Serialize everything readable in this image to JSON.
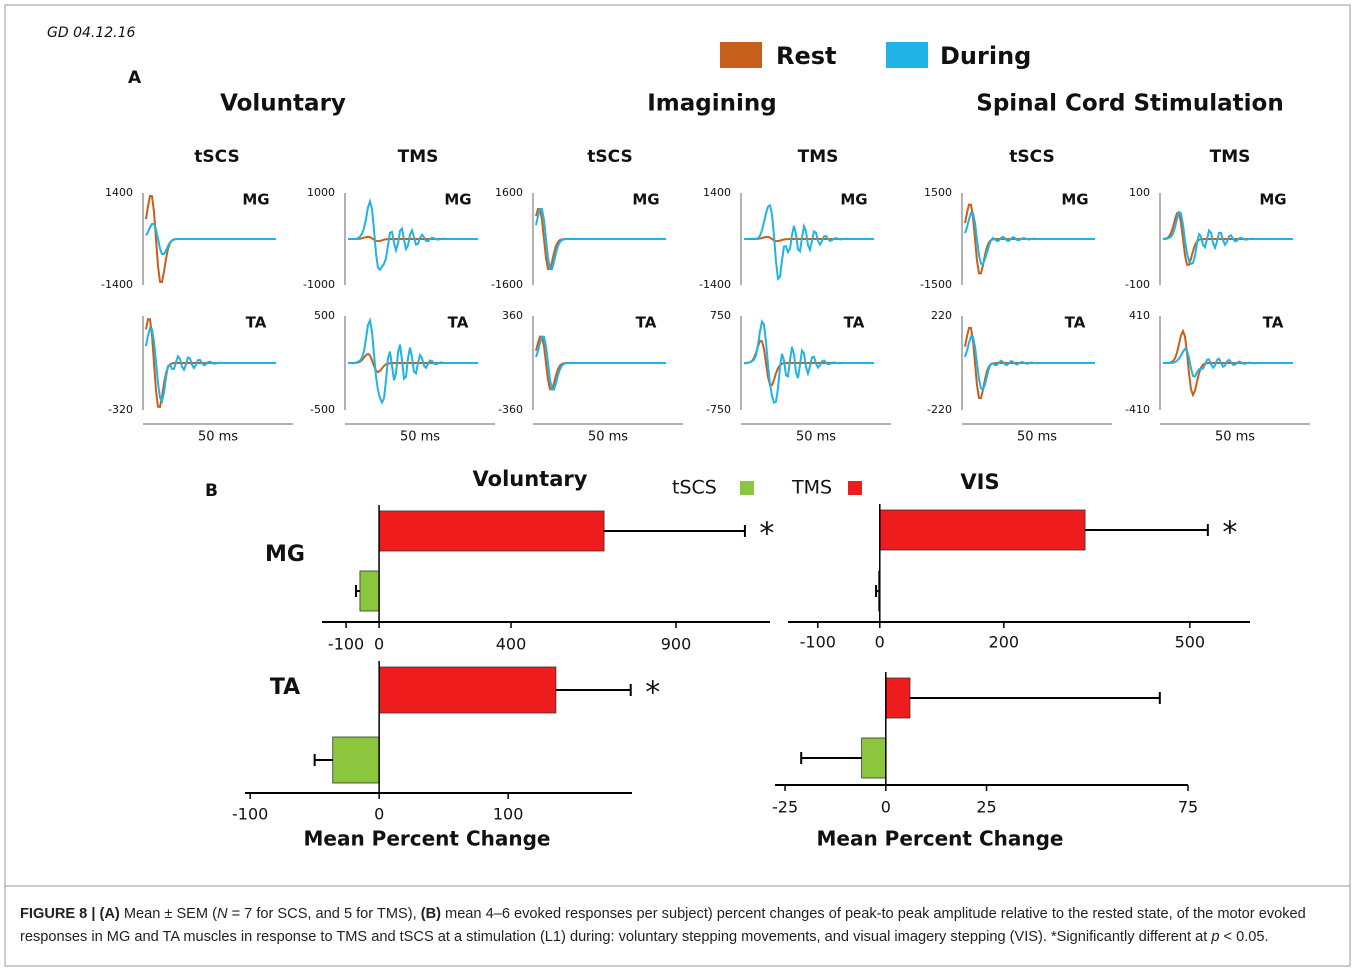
{
  "panel_a": {
    "date": "GD 04.12.16",
    "label": "A",
    "legend": [
      {
        "name": "Rest",
        "color": "#c65f1c"
      },
      {
        "name": "During",
        "color": "#1fb3e6"
      }
    ],
    "groups": [
      {
        "title": "Voluntary",
        "columns": [
          {
            "title": "tSCS",
            "scale_bar": "50 ms",
            "rows": [
              {
                "muscle": "MG",
                "top": 1400,
                "bottom": -1400
              },
              {
                "muscle": "TA",
                "bottom": -320
              }
            ]
          },
          {
            "title": "TMS",
            "scale_bar": "50 ms",
            "rows": [
              {
                "muscle": "MG",
                "top": 1000,
                "bottom": -1000
              },
              {
                "muscle": "TA",
                "top": 500,
                "bottom": -500
              }
            ]
          }
        ]
      },
      {
        "title": "Imagining",
        "columns": [
          {
            "title": "tSCS",
            "scale_bar": "50 ms",
            "rows": [
              {
                "muscle": "MG",
                "top": 1600,
                "bottom": -1600
              },
              {
                "muscle": "TA",
                "top": 360,
                "bottom": -360
              }
            ]
          },
          {
            "title": "TMS",
            "scale_bar": "50 ms",
            "rows": [
              {
                "muscle": "MG",
                "top": 1400,
                "bottom": -1400
              },
              {
                "muscle": "TA",
                "top": 750,
                "bottom": -750
              }
            ]
          }
        ]
      },
      {
        "title": "Spinal Cord Stimulation",
        "columns": [
          {
            "title": "tSCS",
            "scale_bar": "50 ms",
            "rows": [
              {
                "muscle": "MG",
                "top": 1500,
                "bottom": -1500
              },
              {
                "muscle": "TA",
                "top": 220,
                "bottom": -220
              }
            ]
          },
          {
            "title": "TMS",
            "scale_bar": "50 ms",
            "rows": [
              {
                "muscle": "MG",
                "top": 100,
                "bottom": -100
              },
              {
                "muscle": "TA",
                "top": 410,
                "bottom": -410
              }
            ]
          }
        ]
      }
    ]
  },
  "panel_b": {
    "label": "B",
    "legend": [
      {
        "name": "tSCS",
        "color": "#8cc63e"
      },
      {
        "name": "TMS",
        "color": "#ee1c1c"
      }
    ]
  },
  "chart_data": [
    {
      "type": "bar",
      "orientation": "horizontal",
      "title": "Voluntary",
      "row_label": "MG",
      "values": [
        -58,
        682
      ],
      "errors": [
        12,
        427
      ],
      "annotation": "*",
      "xlim": [
        -173,
        1185
      ],
      "xticks": [
        -100,
        0,
        400,
        900
      ]
    },
    {
      "type": "bar",
      "orientation": "horizontal",
      "row_label": "TA",
      "xlabel": "Mean Percent Change",
      "values": [
        -36,
        137
      ],
      "errors": [
        14,
        58
      ],
      "annotation": "*",
      "xlim": [
        -104,
        196
      ],
      "xticks": [
        -100,
        0,
        100
      ]
    },
    {
      "type": "bar",
      "orientation": "horizontal",
      "title": "VIS",
      "values": [
        -2,
        331
      ],
      "errors": [
        4,
        198
      ],
      "annotation": "*",
      "xlim": [
        -148,
        597
      ],
      "xticks": [
        -100,
        0,
        200,
        500
      ]
    },
    {
      "type": "bar",
      "orientation": "horizontal",
      "xlabel": "Mean Percent Change",
      "values": [
        -6,
        6
      ],
      "errors": [
        15,
        62
      ],
      "xlim": [
        -27.5,
        75
      ],
      "xticks": [
        -25,
        0,
        25,
        75
      ]
    }
  ],
  "caption": [
    {
      "text": "FIGURE 8 | (A)",
      "style": "bold"
    },
    {
      "text": " Mean ± SEM ("
    },
    {
      "text": "N",
      "style": "italic"
    },
    {
      "text": " = 7 for SCS, and 5 for TMS), "
    },
    {
      "text": "(B)",
      "style": "bold"
    },
    {
      "text": " mean 4–6 evoked responses per subject) percent changes of peak-to peak amplitude relative to the rested state, of the motor evoked responses in MG and TA muscles in response to TMS and tSCS at a stimulation (L1) during: voluntary stepping movements, and visual imagery stepping (VIS). *Significantly different at "
    },
    {
      "text": "p",
      "style": "italic"
    },
    {
      "text": " < 0.05."
    }
  ]
}
